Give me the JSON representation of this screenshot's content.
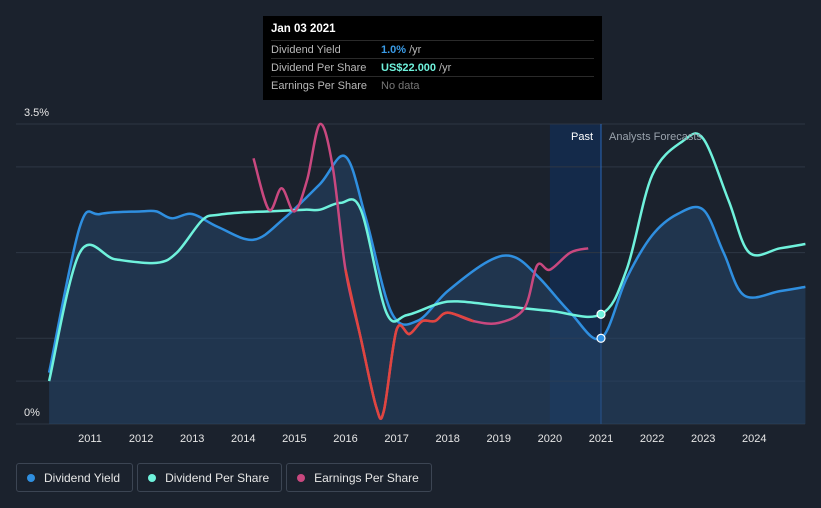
{
  "tooltip": {
    "date": "Jan 03 2021",
    "rows": [
      {
        "label": "Dividend Yield",
        "value": "1.0%",
        "unit": "/yr"
      },
      {
        "label": "Dividend Per Share",
        "value": "US$22.000",
        "unit": "/yr"
      },
      {
        "label": "Earnings Per Share",
        "value": "No data",
        "unit": ""
      }
    ]
  },
  "legend": [
    {
      "label": "Dividend Yield",
      "color": "#2f8fe0"
    },
    {
      "label": "Dividend Per Share",
      "color": "#6ff2dc"
    },
    {
      "label": "Earnings Per Share",
      "color": "#c9487f"
    }
  ],
  "chart_data": {
    "type": "line",
    "ylim_labels": [
      "0%",
      "3.5%"
    ],
    "x_ticks": [
      "2011",
      "2012",
      "2013",
      "2014",
      "2015",
      "2016",
      "2017",
      "2018",
      "2019",
      "2020",
      "2021",
      "2022",
      "2023",
      "2024"
    ],
    "past_label": "Past",
    "forecast_label": "Analysts Forecasts",
    "divider_year": 2021.0,
    "past_start_year": 2020.0,
    "series": [
      {
        "name": "Dividend Yield",
        "color": "#2f8fe0",
        "points": [
          [
            2010.2,
            0.6
          ],
          [
            2010.8,
            2.3
          ],
          [
            2011.2,
            2.45
          ],
          [
            2012.0,
            2.48
          ],
          [
            2012.3,
            2.48
          ],
          [
            2012.6,
            2.4
          ],
          [
            2013.0,
            2.45
          ],
          [
            2013.5,
            2.3
          ],
          [
            2014.2,
            2.15
          ],
          [
            2014.8,
            2.4
          ],
          [
            2015.5,
            2.8
          ],
          [
            2016.0,
            3.12
          ],
          [
            2016.4,
            2.4
          ],
          [
            2016.9,
            1.3
          ],
          [
            2017.4,
            1.2
          ],
          [
            2018.0,
            1.55
          ],
          [
            2018.8,
            1.9
          ],
          [
            2019.3,
            1.95
          ],
          [
            2019.8,
            1.7
          ],
          [
            2020.4,
            1.3
          ],
          [
            2021.0,
            1.0
          ],
          [
            2021.5,
            1.7
          ],
          [
            2022.0,
            2.2
          ],
          [
            2022.5,
            2.45
          ],
          [
            2023.0,
            2.5
          ],
          [
            2023.4,
            2.0
          ],
          [
            2023.8,
            1.5
          ],
          [
            2024.5,
            1.55
          ],
          [
            2025.0,
            1.6
          ]
        ]
      },
      {
        "name": "Dividend Per Share",
        "color": "#6ff2dc",
        "points": [
          [
            2010.2,
            0.5
          ],
          [
            2010.8,
            2.0
          ],
          [
            2011.5,
            1.92
          ],
          [
            2012.3,
            1.88
          ],
          [
            2012.7,
            2.0
          ],
          [
            2013.2,
            2.38
          ],
          [
            2013.5,
            2.44
          ],
          [
            2014.0,
            2.47
          ],
          [
            2014.5,
            2.48
          ],
          [
            2015.2,
            2.5
          ],
          [
            2015.5,
            2.5
          ],
          [
            2015.9,
            2.58
          ],
          [
            2016.3,
            2.5
          ],
          [
            2016.8,
            1.3
          ],
          [
            2017.2,
            1.27
          ],
          [
            2017.8,
            1.4
          ],
          [
            2018.2,
            1.43
          ],
          [
            2019.0,
            1.38
          ],
          [
            2020.0,
            1.32
          ],
          [
            2021.0,
            1.28
          ],
          [
            2021.5,
            1.8
          ],
          [
            2022.0,
            2.9
          ],
          [
            2022.6,
            3.3
          ],
          [
            2023.0,
            3.33
          ],
          [
            2023.5,
            2.6
          ],
          [
            2023.9,
            2.0
          ],
          [
            2024.5,
            2.05
          ],
          [
            2025.0,
            2.1
          ]
        ]
      },
      {
        "name": "Earnings Per Share",
        "color": "#c9487f",
        "points": [
          [
            2014.2,
            3.1
          ],
          [
            2014.5,
            2.5
          ],
          [
            2014.75,
            2.75
          ],
          [
            2015.0,
            2.48
          ],
          [
            2015.25,
            2.85
          ],
          [
            2015.5,
            3.5
          ],
          [
            2015.75,
            3.0
          ],
          [
            2016.0,
            1.8
          ],
          [
            2016.3,
            1.0
          ],
          [
            2016.6,
            0.2
          ],
          [
            2016.75,
            0.15
          ],
          [
            2017.0,
            1.1
          ],
          [
            2017.25,
            1.05
          ],
          [
            2017.5,
            1.2
          ],
          [
            2017.75,
            1.2
          ],
          [
            2018.0,
            1.3
          ],
          [
            2018.5,
            1.2
          ],
          [
            2019.0,
            1.18
          ],
          [
            2019.5,
            1.35
          ],
          [
            2019.75,
            1.85
          ],
          [
            2020.0,
            1.8
          ],
          [
            2020.4,
            2.0
          ],
          [
            2020.75,
            2.05
          ]
        ]
      }
    ]
  }
}
